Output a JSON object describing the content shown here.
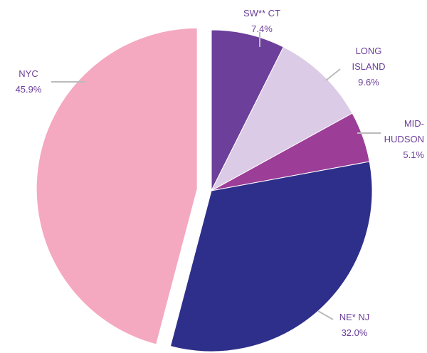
{
  "chart_data": {
    "type": "pie",
    "categories": [
      "SW** CT",
      "LONG ISLAND",
      "MID-HUDSON",
      "NE* NJ",
      "NYC"
    ],
    "values": [
      7.4,
      9.6,
      5.1,
      32.0,
      45.9
    ],
    "value_labels": [
      "7.4%",
      "9.6%",
      "5.1%",
      "32.0%",
      "45.9%"
    ],
    "colors": [
      "#6b3f9a",
      "#dccbe6",
      "#9c3d98",
      "#2e2f8a",
      "#f4a9c0"
    ]
  }
}
